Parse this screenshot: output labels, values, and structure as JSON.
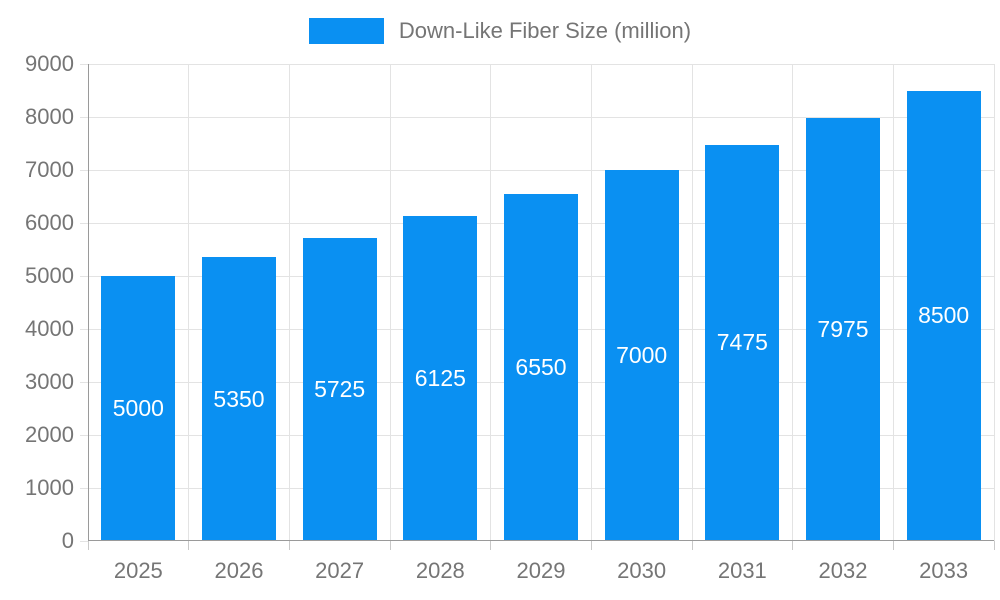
{
  "legend": {
    "label": "Down-Like Fiber Size (million)"
  },
  "chart_data": {
    "type": "bar",
    "title": "Down-Like Fiber Size (million)",
    "categories": [
      "2025",
      "2026",
      "2027",
      "2028",
      "2029",
      "2030",
      "2031",
      "2032",
      "2033"
    ],
    "values": [
      5000,
      5350,
      5725,
      6125,
      6550,
      7000,
      7475,
      7975,
      8500
    ],
    "xlabel": "",
    "ylabel": "",
    "ylim": [
      0,
      9000
    ],
    "ytick_step": 1000,
    "ytick_labels": [
      "0",
      "1000",
      "2000",
      "3000",
      "4000",
      "5000",
      "6000",
      "7000",
      "8000",
      "9000"
    ],
    "grid": true,
    "legend_position": "top-center",
    "bar_labels_inside": true,
    "colors": {
      "bar": "#0a90f2",
      "grid": "#e3e3e3",
      "axis": "#9a9a9a",
      "text": "#757575",
      "bar_label": "#ffffff",
      "background": "#ffffff"
    }
  }
}
